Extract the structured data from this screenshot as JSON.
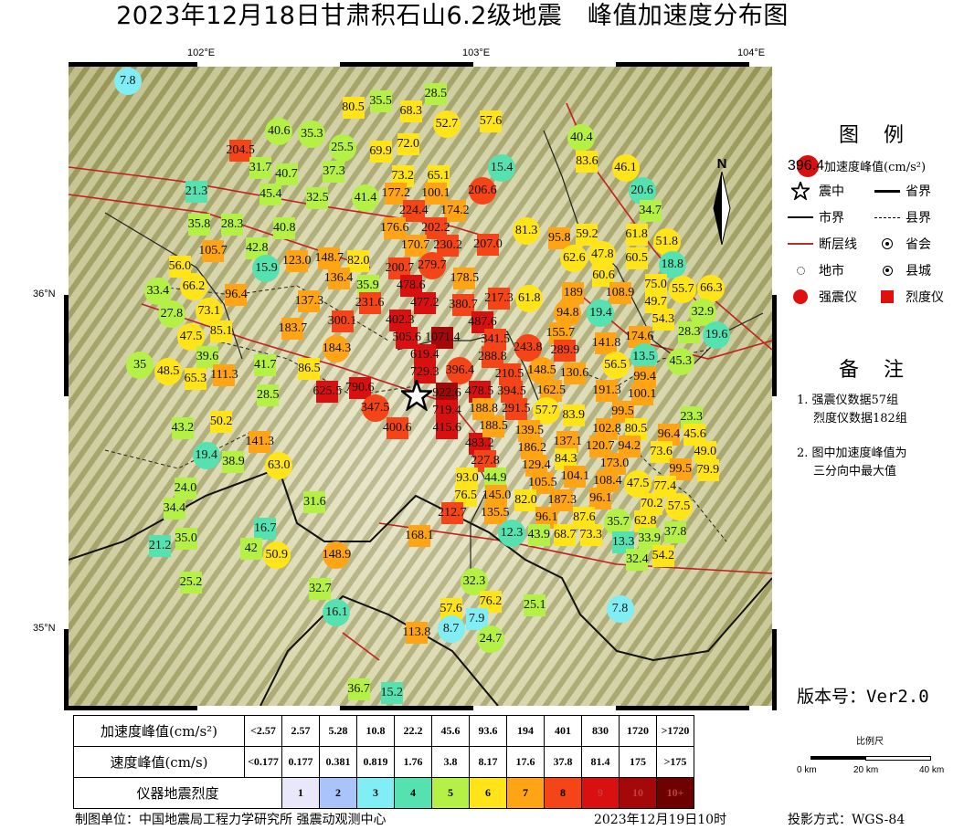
{
  "title": "2023年12月18日甘肃积石山6.2级地震　峰值加速度分布图",
  "axes": {
    "lon_labels": [
      {
        "lon": 102,
        "text": "102°E"
      },
      {
        "lon": 103,
        "text": "103°E"
      },
      {
        "lon": 104,
        "text": "104°E"
      }
    ],
    "lat_labels": [
      {
        "lat": 36,
        "text": "36°N"
      },
      {
        "lat": 35,
        "text": "35°N"
      }
    ]
  },
  "north_label": "N",
  "epicenter": {
    "lon": 102.78,
    "lat": 35.7
  },
  "legend": {
    "title": "图 例",
    "sample_value": "396.4",
    "sample_label": "加速度峰值(cm/s²)",
    "items": [
      "震中",
      "省界",
      "市界",
      "县界",
      "断层线",
      "省会",
      "地市",
      "县城",
      "强震仪",
      "烈度仪"
    ]
  },
  "notes": {
    "title": "备 注",
    "lines": [
      "1. 强震仪数据57组",
      "烈度仪数据182组",
      "2. 图中加速度峰值为",
      "三分向中最大值"
    ]
  },
  "version": "版本号：Ver2.0",
  "scale": {
    "title": "比例尺",
    "labels": [
      "0 km",
      "20 km",
      "40 km"
    ]
  },
  "table": {
    "pga_header": "加速度峰值(cm/s²)",
    "pga": [
      "<2.57",
      "2.57",
      "5.28",
      "10.8",
      "22.2",
      "45.6",
      "93.6",
      "194",
      "401",
      "830",
      "1720",
      ">1720"
    ],
    "pgv_header": "速度峰值(cm/s)",
    "pgv": [
      "<0.177",
      "0.177",
      "0.381",
      "0.819",
      "1.76",
      "3.8",
      "8.17",
      "17.6",
      "37.8",
      "81.4",
      "175",
      ">175"
    ],
    "intensity_header": "仪器地震烈度",
    "intensity": [
      "1",
      "2",
      "3",
      "4",
      "5",
      "6",
      "7",
      "8",
      "9",
      "10",
      "10+"
    ],
    "intensity_colors": [
      "#e8e8fa",
      "#a8c4f8",
      "#80eef4",
      "#56e2b0",
      "#b4f046",
      "#ffe41a",
      "#ffa414",
      "#f44418",
      "#d81010",
      "#a40808",
      "#6e0000"
    ]
  },
  "footer": {
    "unit": "制图单位：中国地震局工程力学研究所 强震动观测中心",
    "date": "2023年12月19日10时",
    "projection": "投影方式：WGS-84"
  },
  "stations": [
    [
      "7.8",
      101.73,
      36.64,
      "c"
    ],
    [
      "28.5",
      102.85,
      36.6,
      "s"
    ],
    [
      "35.5",
      102.65,
      36.58,
      "s"
    ],
    [
      "80.5",
      102.55,
      36.56,
      "s"
    ],
    [
      "68.3",
      102.76,
      36.55,
      "s"
    ],
    [
      "52.7",
      102.89,
      36.51,
      "c"
    ],
    [
      "57.6",
      103.05,
      36.52,
      "s"
    ],
    [
      "40.6",
      102.28,
      36.49,
      "c"
    ],
    [
      "35.3",
      102.4,
      36.48,
      "c"
    ],
    [
      "25.5",
      102.51,
      36.44,
      "c"
    ],
    [
      "69.9",
      102.65,
      36.43,
      "s"
    ],
    [
      "72.0",
      102.75,
      36.45,
      "s"
    ],
    [
      "204.5",
      102.14,
      36.43,
      "s"
    ],
    [
      "40.4",
      103.38,
      36.47,
      "c"
    ],
    [
      "83.6",
      103.4,
      36.4,
      "s"
    ],
    [
      "15.4",
      103.09,
      36.38,
      "c"
    ],
    [
      "46.1",
      103.54,
      36.36,
      "c"
    ],
    [
      "20.6",
      103.6,
      36.32,
      "c"
    ],
    [
      "31.7",
      102.22,
      36.38,
      "s"
    ],
    [
      "40.7",
      102.3,
      36.36,
      "s"
    ],
    [
      "37.3",
      102.48,
      36.37,
      "s"
    ],
    [
      "73.2",
      102.73,
      36.35,
      "s"
    ],
    [
      "65.1",
      102.86,
      36.35,
      "s"
    ],
    [
      "100.1",
      102.85,
      36.31,
      "s"
    ],
    [
      "21.3",
      101.98,
      36.31,
      "s"
    ],
    [
      "45.4",
      102.25,
      36.3,
      "s"
    ],
    [
      "32.5",
      102.42,
      36.29,
      "s"
    ],
    [
      "41.4",
      102.61,
      36.29,
      "c"
    ],
    [
      "177.2",
      102.69,
      36.26,
      "s"
    ],
    [
      "224.4",
      102.77,
      36.24,
      "s"
    ],
    [
      "206.6",
      103.02,
      36.27,
      "c"
    ],
    [
      "34.7",
      103.63,
      36.26,
      "s"
    ],
    [
      "35.8",
      101.99,
      36.21,
      "s"
    ],
    [
      "28.3",
      102.11,
      36.21,
      "s"
    ],
    [
      "40.8",
      102.3,
      36.2,
      "s"
    ],
    [
      "176.6",
      102.7,
      36.19,
      "s"
    ],
    [
      "174.2",
      102.92,
      36.2,
      "s"
    ],
    [
      "81.3",
      103.18,
      36.19,
      "c"
    ],
    [
      "95.8",
      103.3,
      36.17,
      "s"
    ],
    [
      "59.2",
      103.4,
      36.16,
      "s"
    ],
    [
      "61.8",
      103.58,
      36.18,
      "s"
    ],
    [
      "105.7",
      102.04,
      36.13,
      "s"
    ],
    [
      "42.8",
      102.2,
      36.14,
      "s"
    ],
    [
      "202.2",
      102.85,
      36.16,
      "s"
    ],
    [
      "207.0",
      103.04,
      36.15,
      "s"
    ],
    [
      "47.8",
      103.45,
      36.14,
      "c"
    ],
    [
      "62.6",
      103.36,
      36.11,
      "c"
    ],
    [
      "60.5",
      103.58,
      36.11,
      "s"
    ],
    [
      "51.8",
      103.69,
      36.11,
      "c"
    ],
    [
      "18.8",
      103.71,
      36.08,
      "c"
    ],
    [
      "123.0",
      102.36,
      36.1,
      "s"
    ],
    [
      "148.7",
      102.45,
      36.11,
      "s"
    ],
    [
      "82.0",
      102.55,
      36.1,
      "s"
    ],
    [
      "170.7",
      102.79,
      36.12,
      "s"
    ],
    [
      "200.7",
      102.73,
      36.09,
      "s"
    ],
    [
      "230.2",
      102.88,
      36.11,
      "s"
    ],
    [
      "56.0",
      101.92,
      36.07,
      "s"
    ],
    [
      "66.2",
      101.97,
      36.04,
      "c"
    ],
    [
      "15.9",
      102.25,
      36.08,
      "c"
    ],
    [
      "136.4",
      102.5,
      36.05,
      "s"
    ],
    [
      "279.7",
      102.83,
      36.06,
      "c"
    ],
    [
      "178.5",
      102.95,
      36.05,
      "s"
    ],
    [
      "60.6",
      103.46,
      36.05,
      "s"
    ],
    [
      "75.0",
      103.67,
      36.04,
      "s"
    ],
    [
      "33.4",
      101.84,
      36.0,
      "c"
    ],
    [
      "96.4",
      102.12,
      36.0,
      "s"
    ],
    [
      "35.9",
      102.6,
      36.02,
      "s"
    ],
    [
      "217.3",
      103.09,
      35.99,
      "s"
    ],
    [
      "61.8",
      103.18,
      35.99,
      "c"
    ],
    [
      "189",
      103.35,
      35.98,
      "s"
    ],
    [
      "108.9",
      103.52,
      36.0,
      "s"
    ],
    [
      "55.7",
      103.75,
      36.01,
      "c"
    ],
    [
      "66.3",
      103.83,
      36.0,
      "c"
    ],
    [
      "73.1",
      102.03,
      35.95,
      "c"
    ],
    [
      "137.3",
      102.39,
      35.98,
      "s"
    ],
    [
      "231.6",
      102.61,
      35.97,
      "s"
    ],
    [
      "478.6",
      102.76,
      35.98,
      "s"
    ],
    [
      "477.2",
      102.81,
      35.94,
      "s"
    ],
    [
      "380.7",
      102.95,
      35.95,
      "s"
    ],
    [
      "487.6",
      103.02,
      35.91,
      "s"
    ],
    [
      "27.8",
      101.89,
      35.93,
      "c"
    ],
    [
      "300.1",
      102.51,
      35.93,
      "s"
    ],
    [
      "94.8",
      103.33,
      35.94,
      "c"
    ],
    [
      "19.4",
      103.45,
      35.96,
      "c"
    ],
    [
      "49.7",
      103.65,
      35.94,
      "s"
    ],
    [
      "32.9",
      103.82,
      35.96,
      "c"
    ],
    [
      "19.6",
      103.83,
      35.92,
      "c"
    ],
    [
      "47.5",
      101.96,
      35.88,
      "c"
    ],
    [
      "85.1",
      102.07,
      35.89,
      "s"
    ],
    [
      "183.7",
      102.33,
      35.9,
      "s"
    ],
    [
      "402.3",
      102.72,
      35.88,
      "s"
    ],
    [
      "54.3",
      103.7,
      35.91,
      "s"
    ],
    [
      "28.3",
      103.79,
      35.89,
      "s"
    ],
    [
      "39.6",
      102.02,
      35.83,
      "s"
    ],
    [
      "184.3",
      102.49,
      35.84,
      "c"
    ],
    [
      "341.5",
      103.08,
      35.83,
      "s"
    ],
    [
      "243.8",
      103.17,
      35.84,
      "c"
    ],
    [
      "155.7",
      103.3,
      35.85,
      "s"
    ],
    [
      "141.8",
      103.47,
      35.84,
      "s"
    ],
    [
      "174.6",
      103.59,
      35.85,
      "s"
    ],
    [
      "56.5",
      103.52,
      35.81,
      "c"
    ],
    [
      "35",
      101.81,
      35.79,
      "c"
    ],
    [
      "48.5",
      101.87,
      35.77,
      "c"
    ],
    [
      "41.7",
      102.23,
      35.79,
      "s"
    ],
    [
      "86.5",
      102.39,
      35.78,
      "s"
    ],
    [
      "505.6",
      102.76,
      35.83,
      "s"
    ],
    [
      "1071.4",
      102.86,
      35.82,
      "s"
    ],
    [
      "396.4",
      102.96,
      35.78,
      "c"
    ],
    [
      "288.8",
      103.04,
      35.76,
      "s"
    ],
    [
      "289.9",
      103.32,
      35.79,
      "s"
    ],
    [
      "13.5",
      103.59,
      35.78,
      "c"
    ],
    [
      "45.3",
      103.74,
      35.8,
      "c"
    ],
    [
      "65.3",
      101.97,
      35.75,
      "s"
    ],
    [
      "111.3",
      102.06,
      35.76,
      "s"
    ],
    [
      "625.5",
      102.46,
      35.71,
      "s"
    ],
    [
      "790.6",
      102.57,
      35.72,
      "s"
    ],
    [
      "619.4",
      102.81,
      35.78,
      "s"
    ],
    [
      "729.3",
      102.81,
      35.74,
      "s"
    ],
    [
      "210.5",
      103.14,
      35.71,
      "s"
    ],
    [
      "148.5",
      103.24,
      35.76,
      "c"
    ],
    [
      "130.6",
      103.33,
      35.73,
      "s"
    ],
    [
      "191.3",
      103.47,
      35.71,
      "s"
    ],
    [
      "99.4",
      103.61,
      35.73,
      "s"
    ],
    [
      "100.1",
      103.6,
      35.69,
      "s"
    ],
    [
      "28.5",
      102.24,
      35.7,
      "s"
    ],
    [
      "347.5",
      102.63,
      35.65,
      "c"
    ],
    [
      "922.6",
      102.83,
      35.69,
      "s"
    ],
    [
      "719.4",
      102.86,
      35.66,
      "s"
    ],
    [
      "394.5",
      103.11,
      35.67,
      "s"
    ],
    [
      "162.5",
      103.27,
      35.68,
      "s"
    ],
    [
      "99.5",
      103.53,
      35.66,
      "s"
    ],
    [
      "23.3",
      103.78,
      35.63,
      "s"
    ],
    [
      "50.2",
      102.07,
      35.62,
      "s"
    ],
    [
      "478.5",
      102.96,
      35.65,
      "s"
    ],
    [
      "291.5",
      103.14,
      35.64,
      "s"
    ],
    [
      "57.7",
      103.27,
      35.64,
      "c"
    ],
    [
      "83.9",
      103.32,
      35.64,
      "s"
    ],
    [
      "102.8",
      103.49,
      35.62,
      "s"
    ],
    [
      "80.5",
      103.56,
      35.62,
      "s"
    ],
    [
      "43.2",
      101.93,
      35.6,
      "s"
    ],
    [
      "400.6",
      102.71,
      35.61,
      "s"
    ],
    [
      "415.6",
      102.9,
      35.63,
      "s"
    ],
    [
      "188.8",
      103.04,
      35.62,
      "s"
    ],
    [
      "139.5",
      103.19,
      35.61,
      "s"
    ],
    [
      "96.4",
      103.71,
      35.58,
      "s"
    ],
    [
      "45.6",
      103.78,
      35.57,
      "s"
    ],
    [
      "141.3",
      102.21,
      35.56,
      "s"
    ],
    [
      "483.2",
      103.0,
      35.57,
      "s"
    ],
    [
      "188.5",
      103.06,
      35.58,
      "s"
    ],
    [
      "186.2",
      103.2,
      35.57,
      "s"
    ],
    [
      "137.1",
      103.35,
      35.55,
      "s"
    ],
    [
      "120.7",
      103.45,
      35.55,
      "s"
    ],
    [
      "94.2",
      103.53,
      35.55,
      "s"
    ],
    [
      "49.0",
      103.83,
      35.53,
      "s"
    ],
    [
      "19.4",
      102.02,
      35.52,
      "c"
    ],
    [
      "38.9",
      102.11,
      35.5,
      "s"
    ],
    [
      "63.0",
      102.28,
      35.49,
      "c"
    ],
    [
      "227.8",
      103.03,
      35.54,
      "s"
    ],
    [
      "129.4",
      103.22,
      35.52,
      "s"
    ],
    [
      "173.0",
      103.5,
      35.51,
      "s"
    ],
    [
      "73.6",
      103.67,
      35.51,
      "s"
    ],
    [
      "79.9",
      103.84,
      35.48,
      "s"
    ],
    [
      "93.0",
      102.98,
      35.48,
      "s"
    ],
    [
      "84.3",
      103.32,
      35.49,
      "s"
    ],
    [
      "47.5",
      103.57,
      35.47,
      "c"
    ],
    [
      "99.5",
      103.74,
      35.46,
      "s"
    ],
    [
      "44.9",
      103.06,
      35.47,
      "s"
    ],
    [
      "104.1",
      103.36,
      35.45,
      "s"
    ],
    [
      "108.4",
      103.45,
      35.45,
      "s"
    ],
    [
      "24.0",
      101.94,
      35.42,
      "s"
    ],
    [
      "105.5",
      103.28,
      35.44,
      "s"
    ],
    [
      "77.4",
      103.68,
      35.43,
      "s"
    ],
    [
      "76.5",
      102.97,
      35.43,
      "s"
    ],
    [
      "145.0",
      103.06,
      35.43,
      "s"
    ],
    [
      "187.3",
      103.31,
      35.41,
      "s"
    ],
    [
      "96.1",
      103.45,
      35.41,
      "s"
    ],
    [
      "70.2",
      103.66,
      35.39,
      "s"
    ],
    [
      "135.5",
      103.09,
      35.41,
      "s"
    ],
    [
      "82.0",
      103.15,
      35.39,
      "s"
    ],
    [
      "57.5",
      103.71,
      35.38,
      "c"
    ],
    [
      "212.7",
      102.91,
      35.38,
      "s"
    ],
    [
      "31.6",
      102.41,
      35.38,
      "s"
    ],
    [
      "96.1",
      103.24,
      35.37,
      "s"
    ],
    [
      "34.4",
      101.9,
      35.36,
      "s"
    ],
    [
      "87.6",
      103.39,
      35.36,
      "s"
    ],
    [
      "62.8",
      103.56,
      35.34,
      "s"
    ],
    [
      "12.3",
      103.17,
      35.34,
      "c"
    ],
    [
      "43.9",
      103.27,
      35.34,
      "s"
    ],
    [
      "68.7",
      103.34,
      35.33,
      "s"
    ],
    [
      "73.3",
      103.41,
      35.31,
      "s"
    ],
    [
      "35.7",
      103.47,
      35.31,
      "c"
    ],
    [
      "37.8",
      103.71,
      35.29,
      "s"
    ],
    [
      "16.7",
      102.23,
      35.3,
      "s"
    ],
    [
      "168.1",
      102.79,
      35.28,
      "s"
    ],
    [
      "35.0",
      101.93,
      35.27,
      "s"
    ],
    [
      "33.9",
      103.62,
      35.27,
      "s"
    ],
    [
      "13.3",
      103.55,
      35.27,
      "s"
    ],
    [
      "21.2",
      101.86,
      35.25,
      "s"
    ],
    [
      "42",
      102.19,
      35.24,
      "s"
    ],
    [
      "50.9",
      102.26,
      35.22,
      "c"
    ],
    [
      "148.9",
      102.49,
      35.22,
      "c"
    ],
    [
      "54.2",
      103.66,
      35.23,
      "s"
    ],
    [
      "32.4",
      103.6,
      35.21,
      "s"
    ],
    [
      "25.2",
      101.96,
      35.14,
      "s"
    ],
    [
      "32.3",
      102.99,
      35.14,
      "c"
    ],
    [
      "32.7",
      102.43,
      35.12,
      "s"
    ],
    [
      "76.2",
      103.05,
      35.07,
      "s"
    ],
    [
      "57.6",
      102.91,
      35.06,
      "s"
    ],
    [
      "25.1",
      103.21,
      35.07,
      "s"
    ],
    [
      "7.8",
      103.52,
      35.06,
      "c"
    ],
    [
      "16.1",
      102.49,
      35.05,
      "c"
    ],
    [
      "7.9",
      102.99,
      35.02,
      "s"
    ],
    [
      "8.7",
      102.91,
      35.0,
      "c"
    ],
    [
      "24.7",
      103.05,
      34.99,
      "c"
    ],
    [
      "113.8",
      102.78,
      34.99,
      "s"
    ],
    [
      "36.7",
      102.57,
      34.82,
      "s"
    ],
    [
      "15.2",
      102.69,
      34.81,
      "s"
    ]
  ]
}
